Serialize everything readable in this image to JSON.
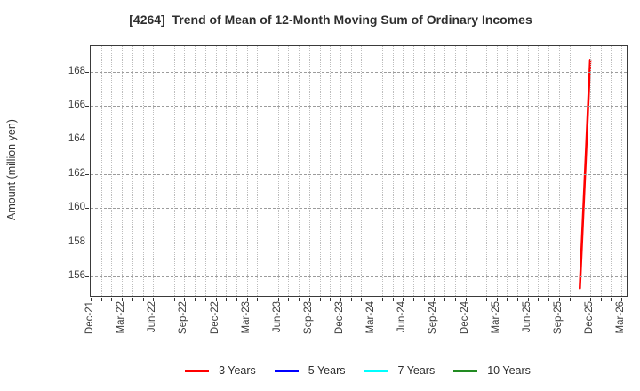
{
  "title": "[4264]  Trend of Mean of 12-Month Moving Sum of Ordinary Incomes",
  "axes": {
    "ylabel": "Amount (million yen)",
    "y_tick_labels": [
      "168",
      "166",
      "164",
      "162",
      "160",
      "158",
      "156"
    ],
    "x_tick_labels": [
      "Dec-21",
      "Mar-22",
      "Jun-22",
      "Sep-22",
      "Dec-22",
      "Mar-23",
      "Jun-23",
      "Sep-23",
      "Dec-23",
      "Mar-24",
      "Jun-24",
      "Sep-24",
      "Dec-24",
      "Mar-25",
      "Jun-25",
      "Sep-25",
      "Dec-25",
      "Mar-26"
    ]
  },
  "legend": {
    "items": [
      {
        "label": "3 Years",
        "color": "#ff0000"
      },
      {
        "label": "5 Years",
        "color": "#0000ff"
      },
      {
        "label": "7 Years",
        "color": "#00ffff"
      },
      {
        "label": "10 Years",
        "color": "#228b22"
      }
    ]
  },
  "chart_data": {
    "type": "line",
    "title": "[4264]  Trend of Mean of 12-Month Moving Sum of Ordinary Incomes",
    "xlabel": "",
    "ylabel": "Amount (million yen)",
    "x_tick_labels": [
      "Dec-21",
      "Mar-22",
      "Jun-22",
      "Sep-22",
      "Dec-22",
      "Mar-23",
      "Jun-23",
      "Sep-23",
      "Dec-23",
      "Mar-24",
      "Jun-24",
      "Sep-24",
      "Dec-24",
      "Mar-25",
      "Jun-25",
      "Sep-25",
      "Dec-25",
      "Mar-26"
    ],
    "x_axis": {
      "start_month": "Dec-21",
      "months_span": 51.5,
      "gridline_every_months": 1,
      "tick_mark_every_months": 1,
      "label_every_months": 3
    },
    "y_ticks": [
      156,
      158,
      160,
      162,
      164,
      166,
      168
    ],
    "ylim": [
      154.85,
      169.5
    ],
    "grid": true,
    "legend_position": "bottom",
    "series": [
      {
        "name": "3 Years",
        "color": "#ff0000",
        "points": [
          {
            "x": "Nov-25",
            "month_index": 47,
            "y": 155.3
          },
          {
            "x": "Dec-25",
            "month_index": 48,
            "y": 168.7
          }
        ]
      },
      {
        "name": "5 Years",
        "color": "#0000ff",
        "points": []
      },
      {
        "name": "7 Years",
        "color": "#00ffff",
        "points": []
      },
      {
        "name": "10 Years",
        "color": "#228b22",
        "points": []
      }
    ]
  }
}
